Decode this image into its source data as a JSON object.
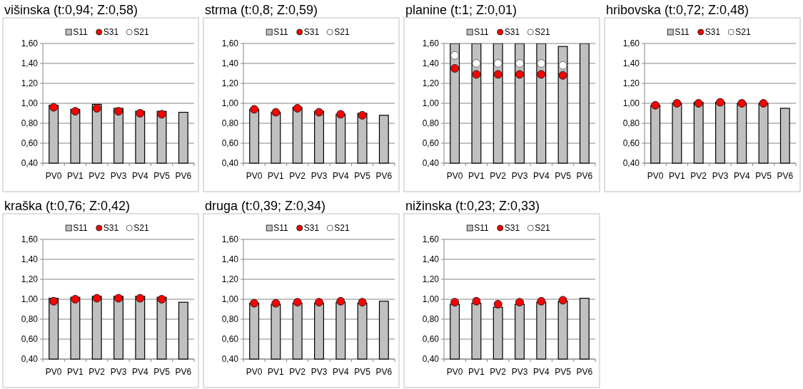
{
  "chart_data": [
    {
      "type": "bar",
      "title": "višinska (t:0,94; Z:0,58)",
      "categories": [
        "PV0",
        "PV1",
        "PV2",
        "PV3",
        "PV4",
        "PV5",
        "PV6"
      ],
      "ylim": [
        0.4,
        1.6
      ],
      "yticks": [
        {
          "value": 0.4,
          "label": "0,40"
        },
        {
          "value": 0.6,
          "label": "0,60"
        },
        {
          "value": 0.8,
          "label": "0,80"
        },
        {
          "value": 1.0,
          "label": "1,00"
        },
        {
          "value": 1.2,
          "label": "1,20"
        },
        {
          "value": 1.4,
          "label": "1,40"
        },
        {
          "value": 1.6,
          "label": "1,60"
        }
      ],
      "grid": "y",
      "legend": "top",
      "marker": "circle",
      "series": [
        {
          "name": "S11",
          "color": "#c0c0c0",
          "values": [
            0.98,
            0.94,
            0.99,
            0.95,
            0.92,
            0.92,
            0.91
          ]
        },
        {
          "name": "S31",
          "type": "scatter",
          "color": "#ff0000",
          "values": [
            0.96,
            0.92,
            0.95,
            0.92,
            0.9,
            0.89,
            null
          ]
        },
        {
          "name": "S21",
          "type": "scatter",
          "color": "#ffffff",
          "values": [
            null,
            null,
            null,
            null,
            null,
            null,
            null
          ]
        }
      ]
    },
    {
      "type": "bar",
      "title": "strma (t:0,8; Z:0,59)",
      "categories": [
        "PV0",
        "PV1",
        "PV2",
        "PV3",
        "PV4",
        "PV5",
        "PV6"
      ],
      "ylim": [
        0.4,
        1.6
      ],
      "yticks": [
        {
          "value": 0.4,
          "label": "0,40"
        },
        {
          "value": 0.6,
          "label": "0,60"
        },
        {
          "value": 0.8,
          "label": "0,80"
        },
        {
          "value": 1.0,
          "label": "1,00"
        },
        {
          "value": 1.2,
          "label": "1,20"
        },
        {
          "value": 1.4,
          "label": "1,40"
        },
        {
          "value": 1.6,
          "label": "1,60"
        }
      ],
      "grid": "y",
      "legend": "top",
      "marker": "circle",
      "series": [
        {
          "name": "S11",
          "color": "#c0c0c0",
          "values": [
            0.94,
            0.91,
            0.96,
            0.92,
            0.89,
            0.9,
            0.88
          ]
        },
        {
          "name": "S31",
          "type": "scatter",
          "color": "#ff0000",
          "values": [
            0.94,
            0.91,
            0.95,
            0.91,
            0.89,
            0.88,
            null
          ]
        },
        {
          "name": "S21",
          "type": "scatter",
          "color": "#ffffff",
          "values": [
            null,
            null,
            null,
            null,
            null,
            null,
            null
          ]
        }
      ]
    },
    {
      "type": "bar",
      "title": "planine (t:1; Z:0,01)",
      "categories": [
        "PV0",
        "PV1",
        "PV2",
        "PV3",
        "PV4",
        "PV5",
        "PV6"
      ],
      "ylim": [
        0.4,
        1.6
      ],
      "yticks": [
        {
          "value": 0.4,
          "label": "0,40"
        },
        {
          "value": 0.6,
          "label": "0,60"
        },
        {
          "value": 0.8,
          "label": "0,80"
        },
        {
          "value": 1.0,
          "label": "1,00"
        },
        {
          "value": 1.2,
          "label": "1,20"
        },
        {
          "value": 1.4,
          "label": "1,40"
        },
        {
          "value": 1.6,
          "label": "1,60"
        }
      ],
      "grid": "y",
      "legend": "top",
      "marker": "circle",
      "series": [
        {
          "name": "S11",
          "color": "#c0c0c0",
          "values": [
            1.6,
            1.6,
            1.6,
            1.6,
            1.6,
            1.57,
            1.6
          ]
        },
        {
          "name": "S31",
          "type": "scatter",
          "color": "#ff0000",
          "values": [
            1.35,
            1.29,
            1.29,
            1.29,
            1.29,
            1.28,
            null
          ]
        },
        {
          "name": "S21",
          "type": "scatter",
          "color": "#ffffff",
          "values": [
            1.48,
            1.4,
            1.4,
            1.4,
            1.4,
            1.38,
            null
          ]
        }
      ]
    },
    {
      "type": "bar",
      "title": "hribovska (t:0,72; Z:0,48)",
      "categories": [
        "PV0",
        "PV1",
        "PV2",
        "PV3",
        "PV4",
        "PV5",
        "PV6"
      ],
      "ylim": [
        0.4,
        1.6
      ],
      "yticks": [
        {
          "value": 0.4,
          "label": "0,40"
        },
        {
          "value": 0.6,
          "label": "0,60"
        },
        {
          "value": 0.8,
          "label": "0,80"
        },
        {
          "value": 1.0,
          "label": "1,00"
        },
        {
          "value": 1.2,
          "label": "1,20"
        },
        {
          "value": 1.4,
          "label": "1,40"
        },
        {
          "value": 1.6,
          "label": "1,60"
        }
      ],
      "grid": "y",
      "legend": "top",
      "marker": "circle",
      "series": [
        {
          "name": "S11",
          "color": "#c0c0c0",
          "values": [
            0.98,
            1.0,
            1.01,
            1.01,
            1.0,
            1.0,
            0.95
          ]
        },
        {
          "name": "S31",
          "type": "scatter",
          "color": "#ff0000",
          "values": [
            0.98,
            1.0,
            1.0,
            1.01,
            1.0,
            1.0,
            null
          ]
        },
        {
          "name": "S21",
          "type": "scatter",
          "color": "#ffffff",
          "values": [
            null,
            null,
            null,
            null,
            null,
            null,
            null
          ]
        }
      ]
    },
    {
      "type": "bar",
      "title": "kraška (t:0,76; Z:0,42)",
      "categories": [
        "PV0",
        "PV1",
        "PV2",
        "PV3",
        "PV4",
        "PV5",
        "PV6"
      ],
      "ylim": [
        0.4,
        1.6
      ],
      "yticks": [
        {
          "value": 0.4,
          "label": "0,40"
        },
        {
          "value": 0.6,
          "label": "0,60"
        },
        {
          "value": 0.8,
          "label": "0,80"
        },
        {
          "value": 1.0,
          "label": "1,00"
        },
        {
          "value": 1.2,
          "label": "1,20"
        },
        {
          "value": 1.4,
          "label": "1,40"
        },
        {
          "value": 1.6,
          "label": "1,60"
        }
      ],
      "grid": "y",
      "legend": "top",
      "marker": "circle",
      "series": [
        {
          "name": "S11",
          "color": "#c0c0c0",
          "values": [
            1.01,
            1.02,
            1.03,
            1.03,
            1.03,
            1.02,
            0.97
          ]
        },
        {
          "name": "S31",
          "type": "scatter",
          "color": "#ff0000",
          "values": [
            0.98,
            1.0,
            1.01,
            1.01,
            1.01,
            1.0,
            null
          ]
        },
        {
          "name": "S21",
          "type": "scatter",
          "color": "#ffffff",
          "values": [
            null,
            null,
            null,
            null,
            null,
            null,
            null
          ]
        }
      ]
    },
    {
      "type": "bar",
      "title": "druga (t:0,39; Z:0,34)",
      "categories": [
        "PV0",
        "PV1",
        "PV2",
        "PV3",
        "PV4",
        "PV5",
        "PV6"
      ],
      "ylim": [
        0.4,
        1.6
      ],
      "yticks": [
        {
          "value": 0.4,
          "label": "0,40"
        },
        {
          "value": 0.6,
          "label": "0,60"
        },
        {
          "value": 0.8,
          "label": "0,80"
        },
        {
          "value": 1.0,
          "label": "1,00"
        },
        {
          "value": 1.2,
          "label": "1,20"
        },
        {
          "value": 1.4,
          "label": "1,40"
        },
        {
          "value": 1.6,
          "label": "1,60"
        }
      ],
      "grid": "y",
      "legend": "top",
      "marker": "circle",
      "series": [
        {
          "name": "S11",
          "color": "#c0c0c0",
          "values": [
            0.96,
            0.95,
            0.96,
            0.96,
            0.97,
            0.96,
            0.98
          ]
        },
        {
          "name": "S31",
          "type": "scatter",
          "color": "#ff0000",
          "values": [
            0.96,
            0.96,
            0.97,
            0.97,
            0.98,
            0.97,
            null
          ]
        },
        {
          "name": "S21",
          "type": "scatter",
          "color": "#ffffff",
          "values": [
            null,
            null,
            null,
            null,
            null,
            null,
            null
          ]
        }
      ]
    },
    {
      "type": "bar",
      "title": "nižinska (t:0,23; Z:0,33)",
      "categories": [
        "PV0",
        "PV1",
        "PV2",
        "PV3",
        "PV4",
        "PV5",
        "PV6"
      ],
      "ylim": [
        0.4,
        1.6
      ],
      "yticks": [
        {
          "value": 0.4,
          "label": "0,40"
        },
        {
          "value": 0.6,
          "label": "0,60"
        },
        {
          "value": 0.8,
          "label": "0,80"
        },
        {
          "value": 1.0,
          "label": "1,00"
        },
        {
          "value": 1.2,
          "label": "1,20"
        },
        {
          "value": 1.4,
          "label": "1,40"
        },
        {
          "value": 1.6,
          "label": "1,60"
        }
      ],
      "grid": "y",
      "legend": "top",
      "marker": "circle",
      "series": [
        {
          "name": "S11",
          "color": "#c0c0c0",
          "values": [
            0.95,
            0.96,
            0.92,
            0.95,
            0.97,
            0.98,
            1.01
          ]
        },
        {
          "name": "S31",
          "type": "scatter",
          "color": "#ff0000",
          "values": [
            0.97,
            0.98,
            0.95,
            0.97,
            0.98,
            0.99,
            null
          ]
        },
        {
          "name": "S21",
          "type": "scatter",
          "color": "#ffffff",
          "values": [
            null,
            null,
            null,
            null,
            null,
            null,
            null
          ]
        }
      ]
    }
  ]
}
